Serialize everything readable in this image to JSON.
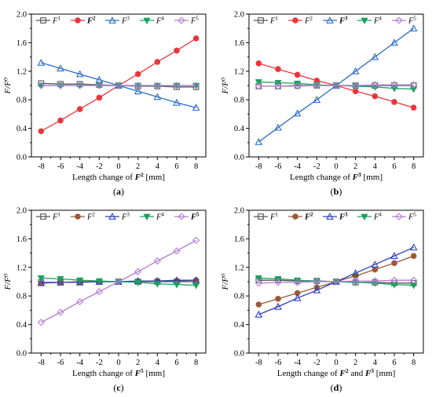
{
  "chart_data": [
    {
      "type": "line",
      "panel_label": "(a)",
      "ylabel": "F/F⁰",
      "xlabel": "Length change of F² [mm]",
      "xlabel_parts": [
        "Length change of ",
        "F",
        "2",
        " [mm]"
      ],
      "x": [
        -8,
        -6,
        -4,
        -2,
        0,
        2,
        4,
        6,
        8
      ],
      "xticks": [
        "-8",
        "-6",
        "-4",
        "-2",
        "0",
        "2",
        "4",
        "6",
        "8"
      ],
      "yticks": [
        "0.0",
        "0.4",
        "0.8",
        "1.2",
        "1.6",
        "2.0"
      ],
      "xlim": [
        -9,
        9
      ],
      "ylim": [
        0.0,
        2.0
      ],
      "grid": false,
      "legend_position": "top",
      "series": [
        {
          "name": "F¹",
          "sup": "1",
          "bold": false,
          "color": "#555555",
          "marker": "square",
          "values": [
            1.03,
            1.02,
            1.02,
            1.01,
            1.0,
            0.99,
            0.99,
            0.98,
            0.98
          ]
        },
        {
          "name": "F²",
          "sup": "2",
          "bold": true,
          "color": "#e8383b",
          "marker": "circle",
          "values": [
            0.36,
            0.51,
            0.67,
            0.83,
            1.0,
            1.16,
            1.33,
            1.49,
            1.66
          ]
        },
        {
          "name": "F³",
          "sup": "3",
          "bold": false,
          "color": "#2b6cc8",
          "marker": "triangle",
          "values": [
            1.32,
            1.24,
            1.16,
            1.08,
            1.0,
            0.92,
            0.84,
            0.76,
            0.69
          ]
        },
        {
          "name": "F⁴",
          "sup": "4",
          "bold": false,
          "color": "#19a15f",
          "marker": "triangle-down",
          "values": [
            1.0,
            1.0,
            1.0,
            1.0,
            1.0,
            1.0,
            1.0,
            1.0,
            1.0
          ]
        },
        {
          "name": "F⁵",
          "sup": "5",
          "bold": false,
          "color": "#b57cd6",
          "marker": "diamond",
          "values": [
            1.0,
            1.0,
            1.0,
            1.0,
            1.0,
            1.0,
            1.0,
            1.0,
            1.0
          ]
        }
      ]
    },
    {
      "type": "line",
      "panel_label": "(b)",
      "ylabel": "F/F⁰",
      "xlabel": "Length change of F³ [mm]",
      "xlabel_parts": [
        "Length change of ",
        "F",
        "3",
        " [mm]"
      ],
      "x": [
        -8,
        -6,
        -4,
        -2,
        0,
        2,
        4,
        6,
        8
      ],
      "xticks": [
        "-8",
        "-6",
        "-4",
        "-2",
        "0",
        "2",
        "4",
        "6",
        "8"
      ],
      "yticks": [
        "0.0",
        "0.4",
        "0.8",
        "1.2",
        "1.6",
        "2.0"
      ],
      "xlim": [
        -9,
        9
      ],
      "ylim": [
        0.0,
        2.0
      ],
      "grid": false,
      "legend_position": "top",
      "series": [
        {
          "name": "F¹",
          "sup": "1",
          "bold": false,
          "color": "#555555",
          "marker": "square",
          "values": [
            0.99,
            0.99,
            1.0,
            1.0,
            1.0,
            1.0,
            1.0,
            1.0,
            1.0
          ]
        },
        {
          "name": "F²",
          "sup": "2",
          "bold": false,
          "color": "#e8383b",
          "marker": "circle",
          "values": [
            1.31,
            1.23,
            1.15,
            1.07,
            1.0,
            0.92,
            0.85,
            0.77,
            0.69
          ]
        },
        {
          "name": "F³",
          "sup": "3",
          "bold": true,
          "color": "#2b6cc8",
          "marker": "triangle",
          "values": [
            0.21,
            0.41,
            0.61,
            0.8,
            1.0,
            1.2,
            1.4,
            1.6,
            1.8
          ]
        },
        {
          "name": "F⁴",
          "sup": "4",
          "bold": false,
          "color": "#19a15f",
          "marker": "triangle-down",
          "values": [
            1.05,
            1.04,
            1.03,
            1.01,
            1.0,
            0.99,
            0.98,
            0.96,
            0.95
          ]
        },
        {
          "name": "F⁵",
          "sup": "5",
          "bold": false,
          "color": "#b57cd6",
          "marker": "diamond",
          "values": [
            0.99,
            0.99,
            0.99,
            1.0,
            1.0,
            1.0,
            1.01,
            1.01,
            1.01
          ]
        }
      ]
    },
    {
      "type": "line",
      "panel_label": "(c)",
      "ylabel": "F/F⁰",
      "xlabel": "Length change of F⁵ [mm]",
      "xlabel_parts": [
        "Length change of ",
        "F",
        "5",
        " [mm]"
      ],
      "x": [
        -8,
        -6,
        -4,
        -2,
        0,
        2,
        4,
        6,
        8
      ],
      "xticks": [
        "-8",
        "-6",
        "-4",
        "-2",
        "0",
        "2",
        "4",
        "6",
        "8"
      ],
      "yticks": [
        "0.0",
        "0.4",
        "0.8",
        "1.2",
        "1.6",
        "2.0"
      ],
      "xlim": [
        -9,
        9
      ],
      "ylim": [
        0.0,
        2.0
      ],
      "grid": false,
      "legend_position": "top",
      "series": [
        {
          "name": "F¹",
          "sup": "1",
          "bold": false,
          "color": "#555555",
          "marker": "square",
          "values": [
            0.99,
            0.99,
            1.0,
            1.0,
            1.0,
            1.0,
            1.0,
            1.0,
            1.0
          ]
        },
        {
          "name": "F²",
          "sup": "2",
          "bold": false,
          "color": "#9c5a37",
          "marker": "circle",
          "values": [
            0.98,
            0.99,
            0.99,
            1.0,
            1.0,
            1.0,
            1.01,
            1.01,
            1.02
          ]
        },
        {
          "name": "F³",
          "sup": "3",
          "bold": false,
          "color": "#2b3fc0",
          "marker": "triangle",
          "values": [
            0.98,
            0.99,
            0.99,
            1.0,
            1.0,
            1.01,
            1.01,
            1.02,
            1.02
          ]
        },
        {
          "name": "F⁴",
          "sup": "4",
          "bold": false,
          "color": "#19a15f",
          "marker": "triangle-down",
          "values": [
            1.05,
            1.04,
            1.02,
            1.01,
            1.0,
            0.99,
            0.97,
            0.96,
            0.95
          ]
        },
        {
          "name": "F⁵",
          "sup": "5",
          "bold": true,
          "color": "#b57cd6",
          "marker": "diamond",
          "values": [
            0.43,
            0.57,
            0.72,
            0.86,
            1.0,
            1.14,
            1.29,
            1.43,
            1.58
          ]
        }
      ]
    },
    {
      "type": "line",
      "panel_label": "(d)",
      "ylabel": "F/F⁰",
      "xlabel": "Length change of F² and F³ [mm]",
      "xlabel_parts": [
        "Length change of ",
        "F",
        "2",
        " and ",
        "F",
        "3",
        " [mm]"
      ],
      "x": [
        -8,
        -6,
        -4,
        -2,
        0,
        2,
        4,
        6,
        8
      ],
      "xticks": [
        "-8",
        "-6",
        "-4",
        "-2",
        "0",
        "2",
        "4",
        "6",
        "8"
      ],
      "yticks": [
        "0.0",
        "0.4",
        "0.8",
        "1.2",
        "1.6",
        "2.0"
      ],
      "xlim": [
        -9,
        9
      ],
      "ylim": [
        0.0,
        2.0
      ],
      "grid": false,
      "legend_position": "top",
      "series": [
        {
          "name": "F¹",
          "sup": "1",
          "bold": false,
          "color": "#555555",
          "marker": "square",
          "values": [
            1.02,
            1.02,
            1.01,
            1.01,
            1.0,
            0.99,
            0.99,
            0.98,
            0.98
          ]
        },
        {
          "name": "F²",
          "sup": "2",
          "bold": true,
          "color": "#9c5a37",
          "marker": "circle",
          "values": [
            0.68,
            0.76,
            0.84,
            0.92,
            1.0,
            1.08,
            1.17,
            1.26,
            1.36
          ]
        },
        {
          "name": "F³",
          "sup": "3",
          "bold": true,
          "color": "#2b3fc0",
          "marker": "triangle",
          "values": [
            0.54,
            0.65,
            0.77,
            0.88,
            1.0,
            1.12,
            1.24,
            1.36,
            1.48
          ]
        },
        {
          "name": "F⁴",
          "sup": "4",
          "bold": false,
          "color": "#19a15f",
          "marker": "triangle-down",
          "values": [
            1.05,
            1.04,
            1.02,
            1.01,
            1.0,
            0.99,
            0.98,
            0.96,
            0.95
          ]
        },
        {
          "name": "F⁵",
          "sup": "5",
          "bold": false,
          "color": "#b57cd6",
          "marker": "diamond",
          "values": [
            0.98,
            0.99,
            0.99,
            1.0,
            1.0,
            1.01,
            1.01,
            1.02,
            1.02
          ]
        }
      ]
    }
  ]
}
